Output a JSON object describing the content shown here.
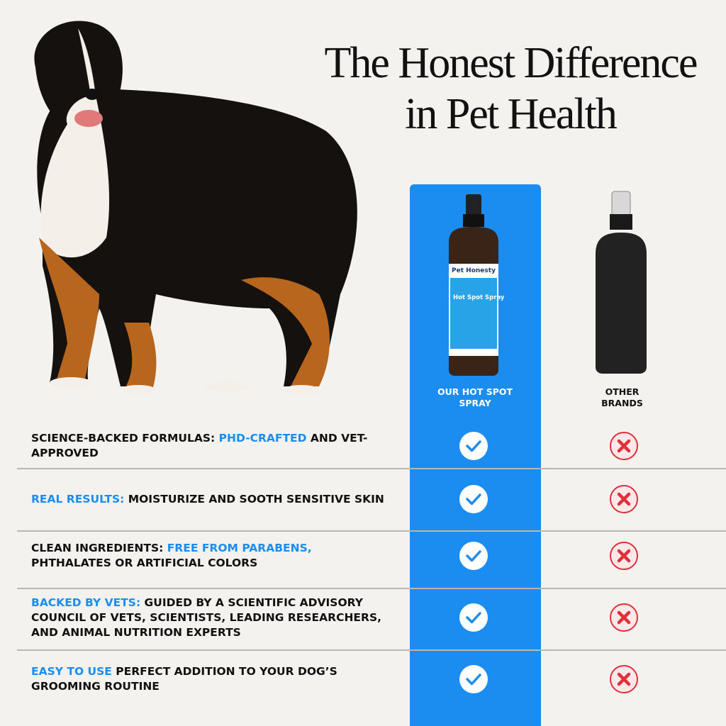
{
  "header": {
    "title_line1": "The Honest Difference",
    "title_line2": "in Pet Health"
  },
  "columns": {
    "ours": "OUR HOT SPOT SPRAY",
    "others": "OTHER BRANDS"
  },
  "bottle": {
    "brand": "Pet Honesty",
    "product": "Hot Spot Spray"
  },
  "rows": [
    {
      "parts": [
        {
          "text": "SCIENCE-BACKED FORMULAS: ",
          "style": "dark"
        },
        {
          "text": "PHD-CRAFTED",
          "style": "blue"
        },
        {
          "text": " AND VET-APPROVED",
          "style": "dark"
        }
      ],
      "ours": true,
      "others": false
    },
    {
      "parts": [
        {
          "text": "REAL RESULTS:",
          "style": "blue"
        },
        {
          "text": " MOISTURIZE AND SOOTH SENSITIVE SKIN",
          "style": "dark"
        }
      ],
      "ours": true,
      "others": false
    },
    {
      "parts": [
        {
          "text": "CLEAN INGREDIENTS: ",
          "style": "dark"
        },
        {
          "text": "FREE FROM PARABENS,",
          "style": "blue"
        },
        {
          "text": " PHTHALATES OR ARTIFICIAL COLORS",
          "style": "dark"
        }
      ],
      "ours": true,
      "others": false
    },
    {
      "parts": [
        {
          "text": "BACKED BY VETS:",
          "style": "blue"
        },
        {
          "text": " GUIDED BY A SCIENTIFIC ADVISORY COUNCIL OF VETS, SCIENTISTS, LEADING RESEARCHERS, AND ANIMAL NUTRITION EXPERTS",
          "style": "dark"
        }
      ],
      "ours": true,
      "others": false
    },
    {
      "parts": [
        {
          "text": "EASY TO USE",
          "style": "blue"
        },
        {
          "text": " PERFECT ADDITION TO YOUR DOG’S GROOMING ROUTINE",
          "style": "dark"
        }
      ],
      "ours": true,
      "others": false
    }
  ]
}
